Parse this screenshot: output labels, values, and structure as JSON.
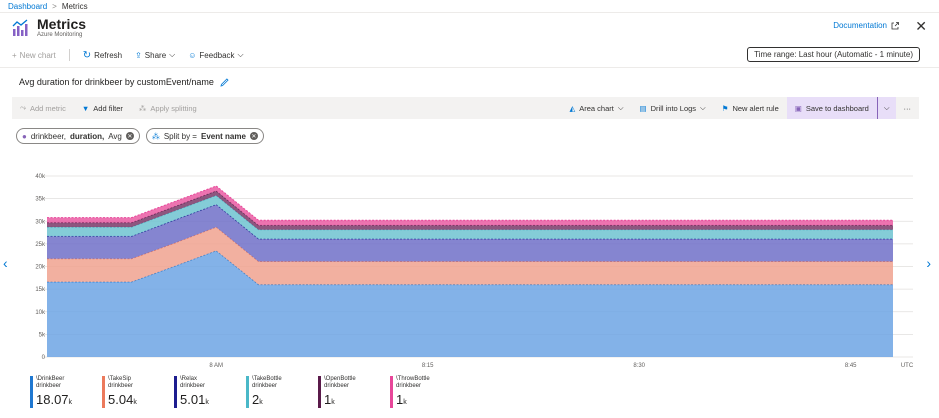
{
  "breadcrumb": {
    "home": "Dashboard",
    "sep": ">",
    "current": "Metrics"
  },
  "header": {
    "title": "Metrics",
    "subtitle": "Azure Monitoring",
    "documentation": "Documentation"
  },
  "toolbar": {
    "new_chart": "New chart",
    "refresh": "Refresh",
    "share": "Share",
    "feedback": "Feedback",
    "time_range": "Time range: Last hour (Automatic - 1 minute)"
  },
  "chart_header": {
    "title": "Avg duration for drinkbeer by customEvent/name"
  },
  "commands": {
    "add_metric": "Add metric",
    "add_filter": "Add filter",
    "apply_splitting": "Apply splitting",
    "area_chart": "Area chart",
    "drill_logs": "Drill into Logs",
    "new_alert": "New alert rule",
    "save_dashboard": "Save to dashboard",
    "more": "···"
  },
  "pills": {
    "metric_prefix": "drinkbeer,",
    "metric_bold": "duration,",
    "metric_suffix": "Avg",
    "split_prefix": "Split by =",
    "split_bold": "Event name"
  },
  "colors": {
    "accent": "#0078d4",
    "series": [
      "#6da4e4",
      "#f0a28f",
      "#7070c8",
      "#6ec3d0",
      "#7a3868",
      "#ea5aa2"
    ]
  },
  "chart_data": {
    "type": "area",
    "stacked": true,
    "x": [
      "7:48",
      "7:51",
      "7:54",
      "7:57",
      "8:00",
      "8:03",
      "8:06",
      "8:09",
      "8:12",
      "8:15",
      "8:18",
      "8:21",
      "8:24",
      "8:27",
      "8:30",
      "8:33",
      "8:36",
      "8:39",
      "8:42",
      "8:45",
      "8:47"
    ],
    "x_tick_labels": [
      "8 AM",
      "8:15",
      "8:30",
      "8:45"
    ],
    "x_unit": "UTC",
    "ylim": [
      0,
      40000
    ],
    "y_ticks": [
      "0",
      "5k",
      "10k",
      "15k",
      "20k",
      "25k",
      "30k",
      "35k",
      "40k"
    ],
    "grid": true,
    "series": [
      {
        "name": "\\DrinkBeer",
        "values": [
          16600,
          16600,
          16600,
          20000,
          23500,
          16000,
          16000,
          16000,
          16000,
          16000,
          16000,
          16000,
          16000,
          16000,
          16000,
          16000,
          16000,
          16000,
          16000,
          16000,
          16000
        ]
      },
      {
        "name": "\\TakeSip",
        "values": [
          5100,
          5100,
          5100,
          5100,
          5200,
          5100,
          5100,
          5100,
          5100,
          5100,
          5100,
          5100,
          5100,
          5100,
          5100,
          5100,
          5100,
          5100,
          5100,
          5100,
          5100
        ]
      },
      {
        "name": "\\Relax",
        "values": [
          5000,
          5000,
          5000,
          5100,
          5000,
          5000,
          5000,
          5000,
          5000,
          5000,
          5000,
          5000,
          5000,
          5000,
          5000,
          5000,
          5000,
          5000,
          5000,
          5000,
          5000
        ]
      },
      {
        "name": "\\TakeBottle",
        "values": [
          2000,
          2000,
          2000,
          2000,
          2000,
          2000,
          2000,
          2000,
          2000,
          2000,
          2000,
          2000,
          2000,
          2000,
          2000,
          2000,
          2000,
          2000,
          2000,
          2000,
          2000
        ]
      },
      {
        "name": "\\OpenBottle",
        "values": [
          1000,
          1000,
          1000,
          1000,
          1000,
          1000,
          1000,
          1000,
          1000,
          1000,
          1000,
          1000,
          1000,
          1000,
          1000,
          1000,
          1000,
          1000,
          1000,
          1000,
          1000
        ]
      },
      {
        "name": "\\ThrowBottle",
        "values": [
          1100,
          1100,
          1100,
          1100,
          1100,
          1100,
          1100,
          1100,
          1100,
          1100,
          1100,
          1100,
          1100,
          1100,
          1100,
          1100,
          1100,
          1100,
          1100,
          1100,
          1100
        ]
      }
    ]
  },
  "legend": [
    {
      "name": "\\DrinkBeer",
      "source": "drinkbeer",
      "value": "18.07",
      "unit": "k",
      "color": "#1f78d1"
    },
    {
      "name": "\\TakeSip",
      "source": "drinkbeer",
      "value": "5.04",
      "unit": "k",
      "color": "#ec7a5c"
    },
    {
      "name": "\\Relax",
      "source": "drinkbeer",
      "value": "5.01",
      "unit": "k",
      "color": "#1d1d8f"
    },
    {
      "name": "\\TakeBottle",
      "source": "drinkbeer",
      "value": "2",
      "unit": "k",
      "color": "#4ab8c8"
    },
    {
      "name": "\\OpenBottle",
      "source": "drinkbeer",
      "value": "1",
      "unit": "k",
      "color": "#5a1a4a"
    },
    {
      "name": "\\ThrowBottle",
      "source": "drinkbeer",
      "value": "1",
      "unit": "k",
      "color": "#e8479a"
    }
  ]
}
